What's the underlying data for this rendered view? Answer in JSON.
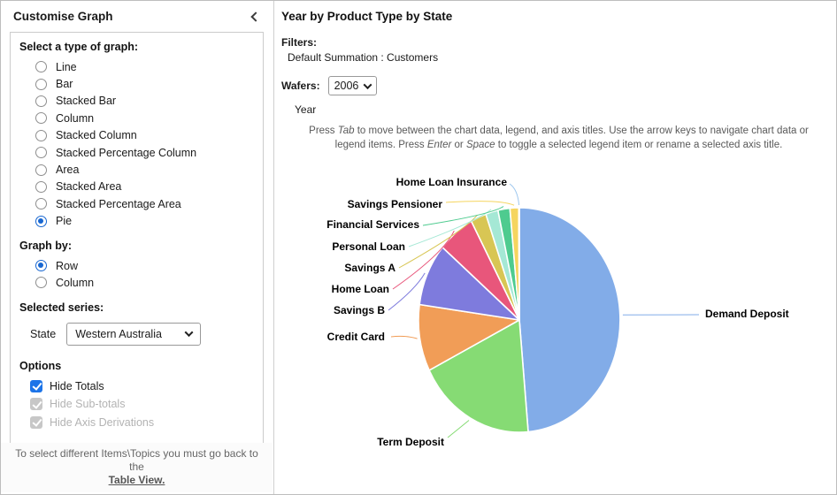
{
  "sidebar": {
    "title": "Customise Graph",
    "graph_type_label": "Select a type of graph:",
    "graph_types": [
      "Line",
      "Bar",
      "Stacked Bar",
      "Column",
      "Stacked Column",
      "Stacked Percentage Column",
      "Area",
      "Stacked Area",
      "Stacked Percentage Area",
      "Pie"
    ],
    "graph_type_selected": "Pie",
    "graph_by_label": "Graph by:",
    "graph_by_options": [
      "Row",
      "Column"
    ],
    "graph_by_selected": "Row",
    "selected_series_label": "Selected series:",
    "state_label": "State",
    "state_value": "Western Australia",
    "options_label": "Options",
    "options": [
      {
        "label": "Hide Totals",
        "checked": true,
        "disabled": false
      },
      {
        "label": "Hide Sub-totals",
        "checked": true,
        "disabled": true
      },
      {
        "label": "Hide Axis Derivations",
        "checked": true,
        "disabled": true
      }
    ],
    "footer_text": "To select different Items\\Topics you must go back to the",
    "footer_link": "Table View."
  },
  "main": {
    "title": "Year by Product Type by State",
    "filters_label": "Filters:",
    "filters_value": "Default Summation : Customers",
    "wafers_label": "Wafers:",
    "wafers_value": "2006",
    "axis_title": "Year",
    "instructions": {
      "p1": "Press ",
      "kbd1": "Tab",
      "p2": " to move between the chart data, legend, and axis titles. Use the arrow keys to navigate chart data or legend items. Press ",
      "kbd2": "Enter",
      "p3": " or ",
      "kbd3": "Space",
      "p4": " to toggle a selected legend item or rename a selected axis title."
    }
  },
  "chart_data": {
    "type": "pie",
    "title": "Year by Product Type by State",
    "series_name": "Western Australia",
    "start_angle_deg": 0,
    "direction": "clockwise",
    "labels_shown": true,
    "slices": [
      {
        "name": "Demand Deposit",
        "pct": 48.6,
        "color": "#82ACE8"
      },
      {
        "name": "Term Deposit",
        "pct": 19.0,
        "color": "#86DB74"
      },
      {
        "name": "Credit Card",
        "pct": 9.6,
        "color": "#F19D57"
      },
      {
        "name": "Savings B",
        "pct": 9.0,
        "color": "#7E7BDD"
      },
      {
        "name": "Home Loan",
        "pct": 5.9,
        "color": "#E8567B"
      },
      {
        "name": "Savings A",
        "pct": 2.5,
        "color": "#D8C654"
      },
      {
        "name": "Personal Loan",
        "pct": 2.0,
        "color": "#A5E8D5"
      },
      {
        "name": "Financial Services",
        "pct": 1.9,
        "color": "#4ECB8F"
      },
      {
        "name": "Savings Pensioner",
        "pct": 1.4,
        "color": "#F5D55F"
      },
      {
        "name": "Home Loan Insurance",
        "pct": 0.1,
        "color": "#9CC6EE"
      }
    ]
  }
}
